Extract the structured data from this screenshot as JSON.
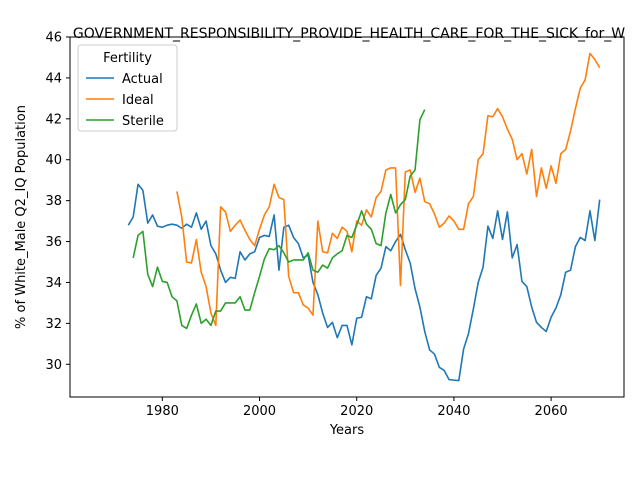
{
  "chart_data": {
    "type": "line",
    "title": "GOVERNMENT_RESPONSIBILITY_PROVIDE_HEALTH_CARE_FOR_THE_SICK_for_W",
    "xlabel": "Years",
    "ylabel": "% of White_Male Q2_IQ Population",
    "xlim": [
      1961,
      2075
    ],
    "ylim": [
      28.4,
      46
    ],
    "xticks": [
      1980,
      2000,
      2020,
      2040,
      2060
    ],
    "yticks": [
      30,
      32,
      34,
      36,
      38,
      40,
      42,
      44,
      46
    ],
    "grid": false,
    "legend": {
      "title": "Fertility",
      "placement": "top-left"
    },
    "series": [
      {
        "name": "Actual",
        "color": "#1f77b4",
        "points": [
          [
            1973,
            36.8
          ],
          [
            1974,
            37.2
          ],
          [
            1975,
            38.8
          ],
          [
            1976,
            38.5
          ],
          [
            1977,
            36.9
          ],
          [
            1978,
            37.3
          ],
          [
            1979,
            36.75
          ],
          [
            1980,
            36.7
          ],
          [
            1981,
            36.8
          ],
          [
            1982,
            36.85
          ],
          [
            1983,
            36.8
          ],
          [
            1984,
            36.65
          ],
          [
            1985,
            36.85
          ],
          [
            1986,
            36.7
          ],
          [
            1987,
            37.4
          ],
          [
            1988,
            36.6
          ],
          [
            1989,
            37.0
          ],
          [
            1990,
            35.8
          ],
          [
            1991,
            35.4
          ],
          [
            1992,
            34.6
          ],
          [
            1993,
            34.0
          ],
          [
            1994,
            34.25
          ],
          [
            1995,
            34.2
          ],
          [
            1996,
            35.5
          ],
          [
            1997,
            35.1
          ],
          [
            1998,
            35.4
          ],
          [
            1999,
            35.5
          ],
          [
            2000,
            36.2
          ],
          [
            2001,
            36.3
          ],
          [
            2002,
            36.25
          ],
          [
            2003,
            37.3
          ],
          [
            2004,
            34.6
          ],
          [
            2005,
            36.7
          ],
          [
            2006,
            36.8
          ],
          [
            2007,
            36.2
          ],
          [
            2008,
            35.9
          ],
          [
            2009,
            35.2
          ],
          [
            2010,
            35.35
          ],
          [
            2011,
            34.0
          ],
          [
            2012,
            33.4
          ],
          [
            2013,
            32.5
          ],
          [
            2014,
            31.8
          ],
          [
            2015,
            32.05
          ],
          [
            2016,
            31.3
          ],
          [
            2017,
            31.9
          ],
          [
            2018,
            31.9
          ],
          [
            2019,
            30.95
          ],
          [
            2020,
            32.25
          ],
          [
            2021,
            32.3
          ],
          [
            2022,
            33.3
          ],
          [
            2023,
            33.2
          ],
          [
            2024,
            34.35
          ],
          [
            2025,
            34.7
          ],
          [
            2026,
            35.75
          ],
          [
            2027,
            35.55
          ],
          [
            2028,
            36.0
          ],
          [
            2029,
            36.35
          ],
          [
            2030,
            35.6
          ],
          [
            2031,
            34.95
          ],
          [
            2032,
            33.7
          ],
          [
            2033,
            32.8
          ],
          [
            2034,
            31.6
          ],
          [
            2035,
            30.7
          ],
          [
            2036,
            30.5
          ],
          [
            2037,
            29.85
          ],
          [
            2038,
            29.7
          ],
          [
            2039,
            29.25
          ],
          [
            2041,
            29.2
          ],
          [
            2042,
            30.75
          ],
          [
            2043,
            31.5
          ],
          [
            2044,
            32.7
          ],
          [
            2045,
            34.0
          ],
          [
            2046,
            34.75
          ],
          [
            2047,
            36.75
          ],
          [
            2048,
            36.15
          ],
          [
            2049,
            37.5
          ],
          [
            2050,
            36.1
          ],
          [
            2051,
            37.45
          ],
          [
            2052,
            35.2
          ],
          [
            2053,
            35.85
          ],
          [
            2054,
            34.05
          ],
          [
            2055,
            33.8
          ],
          [
            2056,
            32.8
          ],
          [
            2057,
            32.05
          ],
          [
            2058,
            31.8
          ],
          [
            2059,
            31.6
          ],
          [
            2060,
            32.3
          ],
          [
            2061,
            32.75
          ],
          [
            2062,
            33.4
          ],
          [
            2063,
            34.5
          ],
          [
            2064,
            34.6
          ],
          [
            2065,
            35.75
          ],
          [
            2066,
            36.2
          ],
          [
            2067,
            36.05
          ],
          [
            2068,
            37.5
          ],
          [
            2069,
            36.05
          ],
          [
            2070,
            38.05
          ]
        ]
      },
      {
        "name": "Ideal",
        "color": "#ff7f0e",
        "points": [
          [
            1983,
            38.45
          ],
          [
            1984,
            37.2
          ],
          [
            1985,
            35.0
          ],
          [
            1986,
            34.95
          ],
          [
            1987,
            36.1
          ],
          [
            1988,
            34.5
          ],
          [
            1989,
            33.8
          ],
          [
            1990,
            32.5
          ],
          [
            1991,
            31.9
          ],
          [
            1992,
            37.7
          ],
          [
            1993,
            37.45
          ],
          [
            1994,
            36.5
          ],
          [
            1995,
            36.8
          ],
          [
            1996,
            37.05
          ],
          [
            1997,
            36.55
          ],
          [
            1998,
            36.1
          ],
          [
            1999,
            35.8
          ],
          [
            2000,
            36.6
          ],
          [
            2001,
            37.3
          ],
          [
            2002,
            37.7
          ],
          [
            2003,
            38.8
          ],
          [
            2004,
            38.15
          ],
          [
            2005,
            38.05
          ],
          [
            2006,
            34.3
          ],
          [
            2007,
            33.5
          ],
          [
            2008,
            33.5
          ],
          [
            2009,
            32.9
          ],
          [
            2010,
            32.75
          ],
          [
            2011,
            32.4
          ],
          [
            2012,
            37.0
          ],
          [
            2013,
            35.5
          ],
          [
            2014,
            35.45
          ],
          [
            2015,
            36.4
          ],
          [
            2016,
            36.15
          ],
          [
            2017,
            36.7
          ],
          [
            2018,
            36.5
          ],
          [
            2019,
            35.5
          ],
          [
            2020,
            37.0
          ],
          [
            2021,
            36.8
          ],
          [
            2022,
            37.55
          ],
          [
            2023,
            37.2
          ],
          [
            2024,
            38.15
          ],
          [
            2025,
            38.45
          ],
          [
            2026,
            39.5
          ],
          [
            2027,
            39.6
          ],
          [
            2028,
            39.6
          ],
          [
            2029,
            33.85
          ],
          [
            2030,
            39.4
          ],
          [
            2031,
            39.5
          ],
          [
            2032,
            38.4
          ],
          [
            2033,
            39.1
          ],
          [
            2034,
            37.95
          ],
          [
            2035,
            37.85
          ],
          [
            2036,
            37.35
          ],
          [
            2037,
            36.7
          ],
          [
            2038,
            36.9
          ],
          [
            2039,
            37.25
          ],
          [
            2040,
            37.0
          ],
          [
            2041,
            36.6
          ],
          [
            2042,
            36.6
          ],
          [
            2043,
            37.85
          ],
          [
            2044,
            38.2
          ],
          [
            2045,
            40.0
          ],
          [
            2046,
            40.3
          ],
          [
            2047,
            42.15
          ],
          [
            2048,
            42.1
          ],
          [
            2049,
            42.5
          ],
          [
            2050,
            42.1
          ],
          [
            2051,
            41.5
          ],
          [
            2052,
            41.0
          ],
          [
            2053,
            40.0
          ],
          [
            2054,
            40.3
          ],
          [
            2055,
            39.3
          ],
          [
            2056,
            40.5
          ],
          [
            2057,
            38.2
          ],
          [
            2058,
            39.6
          ],
          [
            2059,
            38.6
          ],
          [
            2060,
            39.7
          ],
          [
            2061,
            38.85
          ],
          [
            2062,
            40.3
          ],
          [
            2063,
            40.5
          ],
          [
            2064,
            41.4
          ],
          [
            2065,
            42.5
          ],
          [
            2066,
            43.5
          ],
          [
            2067,
            43.9
          ],
          [
            2068,
            45.2
          ],
          [
            2069,
            44.9
          ],
          [
            2070,
            44.5
          ]
        ]
      },
      {
        "name": "Sterile",
        "color": "#2ca02c",
        "points": [
          [
            1974,
            35.2
          ],
          [
            1975,
            36.3
          ],
          [
            1976,
            36.5
          ],
          [
            1977,
            34.4
          ],
          [
            1978,
            33.8
          ],
          [
            1979,
            34.75
          ],
          [
            1980,
            34.05
          ],
          [
            1981,
            34.0
          ],
          [
            1982,
            33.3
          ],
          [
            1983,
            33.1
          ],
          [
            1984,
            31.9
          ],
          [
            1985,
            31.75
          ],
          [
            1986,
            32.4
          ],
          [
            1987,
            32.95
          ],
          [
            1988,
            32.0
          ],
          [
            1989,
            32.2
          ],
          [
            1990,
            31.9
          ],
          [
            1991,
            32.6
          ],
          [
            1992,
            32.6
          ],
          [
            1993,
            33.0
          ],
          [
            1994,
            33.0
          ],
          [
            1995,
            33.0
          ],
          [
            1996,
            33.3
          ],
          [
            1997,
            32.65
          ],
          [
            1998,
            32.65
          ],
          [
            1999,
            33.5
          ],
          [
            2000,
            34.3
          ],
          [
            2001,
            35.15
          ],
          [
            2002,
            35.65
          ],
          [
            2003,
            35.6
          ],
          [
            2004,
            35.8
          ],
          [
            2005,
            35.45
          ],
          [
            2006,
            35.0
          ],
          [
            2007,
            35.1
          ],
          [
            2008,
            35.1
          ],
          [
            2009,
            35.1
          ],
          [
            2010,
            35.45
          ],
          [
            2011,
            34.6
          ],
          [
            2012,
            34.5
          ],
          [
            2013,
            34.85
          ],
          [
            2014,
            34.7
          ],
          [
            2015,
            35.2
          ],
          [
            2016,
            35.4
          ],
          [
            2017,
            35.55
          ],
          [
            2018,
            36.3
          ],
          [
            2019,
            36.2
          ],
          [
            2020,
            36.8
          ],
          [
            2021,
            37.5
          ],
          [
            2022,
            36.85
          ],
          [
            2023,
            36.6
          ],
          [
            2024,
            35.9
          ],
          [
            2025,
            35.8
          ],
          [
            2026,
            37.4
          ],
          [
            2027,
            38.3
          ],
          [
            2028,
            37.4
          ],
          [
            2029,
            37.8
          ],
          [
            2030,
            38.05
          ],
          [
            2031,
            39.2
          ],
          [
            2032,
            39.5
          ],
          [
            2033,
            41.95
          ],
          [
            2034,
            42.45
          ]
        ]
      }
    ]
  }
}
